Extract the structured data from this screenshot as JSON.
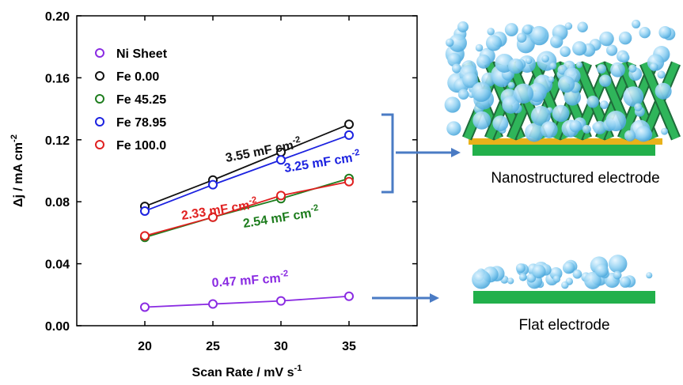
{
  "chart_data": {
    "type": "line",
    "x_label": "Scan Rate / mV s",
    "x_label_sup": "-1",
    "y_label": "Δj / mA cm",
    "y_label_sup": "-2",
    "x": [
      20,
      25,
      30,
      35
    ],
    "xlim": [
      15,
      40
    ],
    "xticks": [
      20,
      25,
      30,
      35
    ],
    "ylim": [
      0,
      0.2
    ],
    "yticks": [
      {
        "value": 0,
        "label": "0.00"
      },
      0.04,
      0.08,
      0.12,
      0.16,
      {
        "value": 0.2,
        "label": "0.20"
      }
    ],
    "legend": "upper left",
    "series": [
      {
        "name": "Ni Sheet",
        "color": "#8a2be2",
        "values": [
          0.012,
          0.014,
          0.016,
          0.019
        ]
      },
      {
        "name": "Fe 0.00",
        "color": "#111111",
        "values": [
          0.077,
          0.094,
          0.112,
          0.13
        ]
      },
      {
        "name": "Fe 45.25",
        "color": "#1e7d1e",
        "values": [
          0.057,
          0.07,
          0.082,
          0.095
        ]
      },
      {
        "name": "Fe 78.95",
        "color": "#1c22e0",
        "values": [
          0.074,
          0.091,
          0.107,
          0.123
        ]
      },
      {
        "name": "Fe 100.0",
        "color": "#e02020",
        "values": [
          0.058,
          0.07,
          0.084,
          0.093
        ]
      }
    ],
    "annotations": [
      {
        "text": "3.55 mF cm",
        "sup": "-2",
        "color": "#111111"
      },
      {
        "text": "3.25 mF cm",
        "sup": "-2",
        "color": "#1c22e0"
      },
      {
        "text": "2.33 mF cm",
        "sup": "-2",
        "color": "#e02020"
      },
      {
        "text": "2.54 mF cm",
        "sup": "-2",
        "color": "#1e7d1e"
      },
      {
        "text": "0.47 mF cm",
        "sup": "-2",
        "color": "#8a2be2"
      }
    ]
  },
  "illustrations": [
    {
      "label": "Nanostructured electrode"
    },
    {
      "label": "Flat electrode"
    }
  ]
}
